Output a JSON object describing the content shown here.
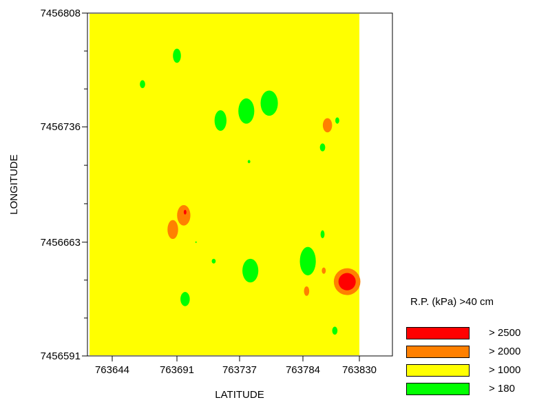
{
  "chart_data": {
    "type": "heatmap",
    "xlabel": "LATITUDE",
    "ylabel": "LONGITUDE",
    "xlim": [
      763644,
      763830
    ],
    "ylim": [
      7456591,
      7456808
    ],
    "x_ticks": [
      "763644",
      "763691",
      "763737",
      "763784",
      "763830"
    ],
    "y_ticks": [
      "7456808",
      "7456736",
      "7456663",
      "7456591"
    ],
    "grid": false,
    "background_class": "> 1000",
    "legend": {
      "title": "R.P. (kPa) >40 cm",
      "placement": "bottom-right",
      "items": [
        {
          "label": "> 2500",
          "color": "#ff0000"
        },
        {
          "label": "> 2000",
          "color": "#ff8000"
        },
        {
          "label": "> 1000",
          "color": "#ffff00"
        },
        {
          "label": "> 180",
          "color": "#00ff00"
        }
      ]
    },
    "zones": [
      {
        "class": "> 180",
        "x": 763691,
        "y": 7456781,
        "rx": 3,
        "ry": 4.5
      },
      {
        "class": "> 180",
        "x": 763666,
        "y": 7456763,
        "rx": 2,
        "ry": 2.5
      },
      {
        "class": "> 180",
        "x": 763759,
        "y": 7456751,
        "rx": 6.5,
        "ry": 8
      },
      {
        "class": "> 180",
        "x": 763742,
        "y": 7456746,
        "rx": 6,
        "ry": 8
      },
      {
        "class": "> 180",
        "x": 763723,
        "y": 7456740,
        "rx": 4.5,
        "ry": 6.5
      },
      {
        "class": "> 180",
        "x": 763812,
        "y": 7456740,
        "rx": 1.5,
        "ry": 2
      },
      {
        "class": "> 180",
        "x": 763800,
        "y": 7456723,
        "rx": 2,
        "ry": 2.5
      },
      {
        "class": "> 180",
        "x": 763744,
        "y": 7456714,
        "rx": 1,
        "ry": 1
      },
      {
        "class": "> 180",
        "x": 763800,
        "y": 7456668,
        "rx": 1.5,
        "ry": 2.5
      },
      {
        "class": "> 180",
        "x": 763705,
        "y": 7456663,
        "rx": 0.5,
        "ry": 0.5
      },
      {
        "class": "> 180",
        "x": 763788,
        "y": 7456651,
        "rx": 6,
        "ry": 9
      },
      {
        "class": "> 180",
        "x": 763745,
        "y": 7456645,
        "rx": 6,
        "ry": 7.5
      },
      {
        "class": "> 180",
        "x": 763718,
        "y": 7456651,
        "rx": 1.5,
        "ry": 1.5
      },
      {
        "class": "> 180",
        "x": 763697,
        "y": 7456627,
        "rx": 3.5,
        "ry": 4.5
      },
      {
        "class": "> 180",
        "x": 763810,
        "y": 7456607,
        "rx": 2,
        "ry": 2.5
      },
      {
        "class": "> 2000",
        "x": 763804,
        "y": 7456737,
        "rx": 3.5,
        "ry": 4.5
      },
      {
        "class": "> 2000",
        "x": 763696,
        "y": 7456680,
        "rx": 5,
        "ry": 6.5
      },
      {
        "class": "> 2000",
        "x": 763688,
        "y": 7456671,
        "rx": 4,
        "ry": 6
      },
      {
        "class": "> 2000",
        "x": 763801,
        "y": 7456645,
        "rx": 1.5,
        "ry": 2
      },
      {
        "class": "> 2000",
        "x": 763820,
        "y": 7456638,
        "rx": 10,
        "ry": 8.5
      },
      {
        "class": "> 2000",
        "x": 763787,
        "y": 7456632,
        "rx": 2,
        "ry": 3
      },
      {
        "class": "> 2500",
        "x": 763820,
        "y": 7456638,
        "rx": 6.5,
        "ry": 5.5
      },
      {
        "class": "> 2500",
        "x": 763697,
        "y": 7456682,
        "rx": 1,
        "ry": 1.5
      }
    ]
  }
}
